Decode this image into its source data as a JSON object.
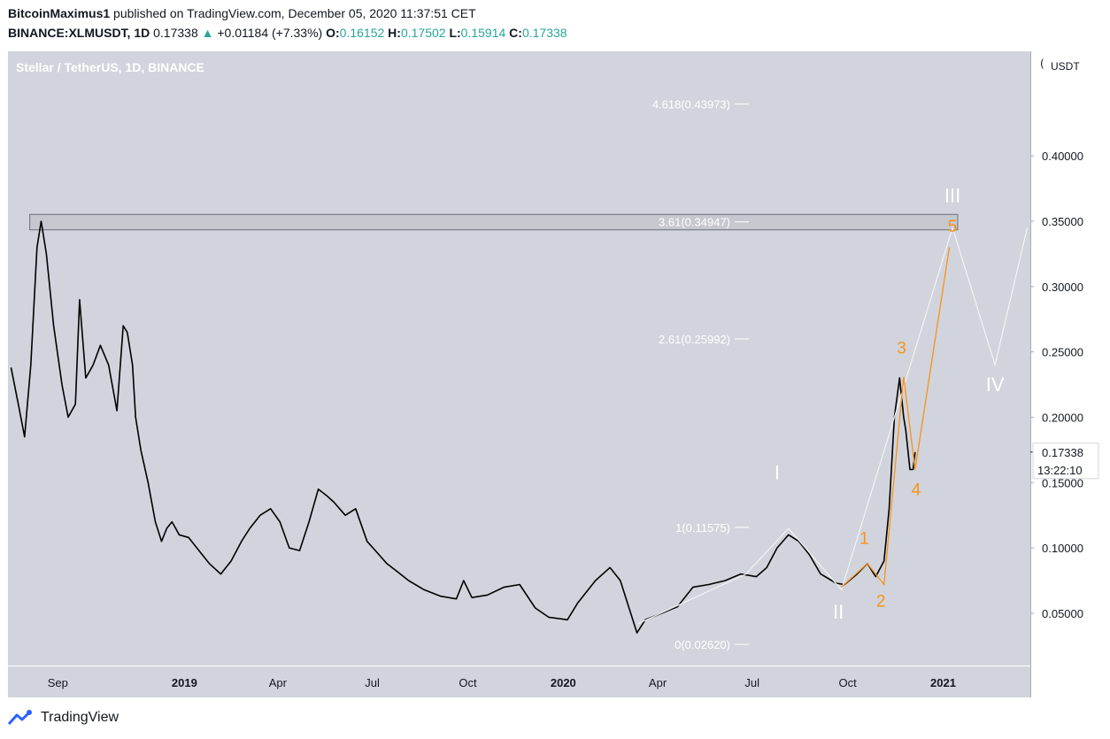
{
  "header": {
    "author": "BitcoinMaximus1",
    "published": "published on TradingView.com, December 05, 2020 11:37:51 CET",
    "symbol": "BINANCE:XLMUSDT, 1D",
    "last": "0.17338",
    "change": "+0.01184 (+7.33%)",
    "o_label": "O:",
    "o": "0.16152",
    "h_label": "H:",
    "h": "0.17502",
    "l_label": "L:",
    "l": "0.15914",
    "c_label": "C:",
    "c": "0.17338"
  },
  "legend": "Stellar / TetherUS, 1D, BINANCE",
  "colors": {
    "plot_bg": "#d1d4dc",
    "candle": "#000000",
    "wave": "#f7931a",
    "projection": "#f5f5f5",
    "fib_text": "#ffffff",
    "positive": "#26a69a"
  },
  "chart_data": {
    "type": "line",
    "series": [
      {
        "x": [
          "2018-07-18",
          "2018-07-25",
          "2018-07-31",
          "2018-08-06",
          "2018-08-12",
          "2018-08-16",
          "2018-08-21",
          "2018-08-28",
          "2018-09-05",
          "2018-09-11",
          "2018-09-18",
          "2018-09-22",
          "2018-09-28",
          "2018-10-05",
          "2018-10-12",
          "2018-10-20",
          "2018-10-28",
          "2018-11-03",
          "2018-11-07",
          "2018-11-12",
          "2018-11-15",
          "2018-11-20",
          "2018-11-27",
          "2018-12-04",
          "2018-12-10",
          "2018-12-15",
          "2018-12-20",
          "2018-12-27",
          "2019-01-05",
          "2019-01-15",
          "2019-01-25",
          "2019-02-05",
          "2019-02-15",
          "2019-02-25",
          "2019-03-05",
          "2019-03-15",
          "2019-03-25",
          "2019-04-03",
          "2019-04-12",
          "2019-04-22",
          "2019-05-01",
          "2019-05-10",
          "2019-05-18",
          "2019-05-25",
          "2019-06-05",
          "2019-06-15",
          "2019-06-26",
          "2019-07-05",
          "2019-07-15",
          "2019-07-25",
          "2019-08-05",
          "2019-08-20",
          "2019-09-05",
          "2019-09-20",
          "2019-09-27",
          "2019-10-05",
          "2019-10-20",
          "2019-11-05",
          "2019-11-20",
          "2019-12-05",
          "2019-12-18",
          "2020-01-05",
          "2020-01-15",
          "2020-02-01",
          "2020-02-15",
          "2020-02-25",
          "2020-03-12",
          "2020-03-20",
          "2020-04-05",
          "2020-04-20",
          "2020-05-05",
          "2020-05-20",
          "2020-06-05",
          "2020-06-20",
          "2020-07-05",
          "2020-07-15",
          "2020-07-25",
          "2020-08-05",
          "2020-08-15",
          "2020-08-25",
          "2020-09-05",
          "2020-09-20",
          "2020-09-28",
          "2020-10-10",
          "2020-10-20",
          "2020-10-28",
          "2020-11-05",
          "2020-11-10",
          "2020-11-15",
          "2020-11-20",
          "2020-11-24",
          "2020-11-26",
          "2020-11-30",
          "2020-12-03",
          "2020-12-05"
        ],
        "y": [
          0.238,
          0.21,
          0.185,
          0.24,
          0.33,
          0.35,
          0.325,
          0.27,
          0.225,
          0.2,
          0.21,
          0.29,
          0.23,
          0.24,
          0.255,
          0.24,
          0.205,
          0.27,
          0.265,
          0.24,
          0.2,
          0.175,
          0.15,
          0.12,
          0.105,
          0.115,
          0.12,
          0.11,
          0.108,
          0.098,
          0.088,
          0.08,
          0.09,
          0.105,
          0.115,
          0.125,
          0.13,
          0.12,
          0.1,
          0.098,
          0.12,
          0.145,
          0.14,
          0.135,
          0.125,
          0.13,
          0.105,
          0.097,
          0.088,
          0.082,
          0.075,
          0.068,
          0.063,
          0.061,
          0.075,
          0.062,
          0.064,
          0.07,
          0.072,
          0.054,
          0.047,
          0.045,
          0.058,
          0.075,
          0.085,
          0.075,
          0.035,
          0.045,
          0.05,
          0.055,
          0.07,
          0.072,
          0.075,
          0.08,
          0.078,
          0.085,
          0.1,
          0.11,
          0.105,
          0.095,
          0.08,
          0.073,
          0.072,
          0.08,
          0.088,
          0.078,
          0.09,
          0.13,
          0.2,
          0.23,
          0.2,
          0.19,
          0.16,
          0.16,
          0.17338
        ]
      }
    ],
    "fib_levels": [
      {
        "label": "4.618(0.43973)",
        "value": 0.43973
      },
      {
        "label": "3.61(0.34947)",
        "value": 0.34947
      },
      {
        "label": "2.61(0.25992)",
        "value": 0.25992
      },
      {
        "label": "1(0.11575)",
        "value": 0.11575
      },
      {
        "label": "0(0.02620)",
        "value": 0.0262
      }
    ],
    "resistance_zone": {
      "from": 0.3434,
      "to": 0.3552,
      "start": "2018-08-05",
      "end": "2021-01-15"
    },
    "projection": {
      "x": [
        "2020-03-13",
        "2020-06-25",
        "2020-08-05",
        "2020-09-25",
        "2021-01-10",
        "2021-02-20",
        "2021-03-23"
      ],
      "y": [
        0.042,
        0.08,
        0.115,
        0.068,
        0.345,
        0.24,
        0.345
      ],
      "labels": [
        {
          "text": "I",
          "x": "2020-07-25",
          "y": 0.1525
        },
        {
          "text": "II",
          "x": "2020-09-22",
          "y": 0.046
        },
        {
          "text": "III",
          "x": "2021-01-10",
          "y": 0.3645
        },
        {
          "text": "IV",
          "x": "2021-02-20",
          "y": 0.22
        }
      ]
    },
    "waves": {
      "x": [
        "2020-09-25",
        "2020-10-20",
        "2020-11-05",
        "2020-11-24",
        "2020-12-05",
        "2021-01-07"
      ],
      "y": [
        0.07,
        0.088,
        0.072,
        0.231,
        0.16,
        0.33
      ],
      "labels": [
        {
          "text": "1",
          "x": "2020-10-17",
          "y": 0.103
        },
        {
          "text": "2",
          "x": "2020-11-02",
          "y": 0.055
        },
        {
          "text": "3",
          "x": "2020-11-22",
          "y": 0.2487
        },
        {
          "text": "4",
          "x": "2020-12-06",
          "y": 0.1405
        },
        {
          "text": "5",
          "x": "2021-01-10",
          "y": 0.342
        }
      ]
    },
    "x_ticks": [
      {
        "label": "Sep",
        "x": "2018-09-01",
        "bold": false
      },
      {
        "label": "2019",
        "x": "2019-01-01",
        "bold": true
      },
      {
        "label": "Apr",
        "x": "2019-04-01",
        "bold": false
      },
      {
        "label": "Jul",
        "x": "2019-07-01",
        "bold": false
      },
      {
        "label": "Oct",
        "x": "2019-10-01",
        "bold": false
      },
      {
        "label": "2020",
        "x": "2020-01-01",
        "bold": true
      },
      {
        "label": "Apr",
        "x": "2020-04-01",
        "bold": false
      },
      {
        "label": "Jul",
        "x": "2020-07-01",
        "bold": false
      },
      {
        "label": "Oct",
        "x": "2020-10-01",
        "bold": false
      },
      {
        "label": "2021",
        "x": "2021-01-01",
        "bold": true
      }
    ],
    "y_ticks": [
      "0.40000",
      "0.35000",
      "0.30000",
      "0.25000",
      "0.20000",
      "0.15000",
      "0.10000",
      "0.05000"
    ],
    "y_unit": "USDT",
    "price_marker": {
      "value": 0.17338,
      "label": "0.17338",
      "countdown": "13:22:10"
    },
    "xlim": [
      "2018-07-15",
      "2021-03-26"
    ],
    "ylim": [
      0.01,
      0.48
    ],
    "grid": false
  },
  "footer": {
    "brand": "TradingView"
  }
}
